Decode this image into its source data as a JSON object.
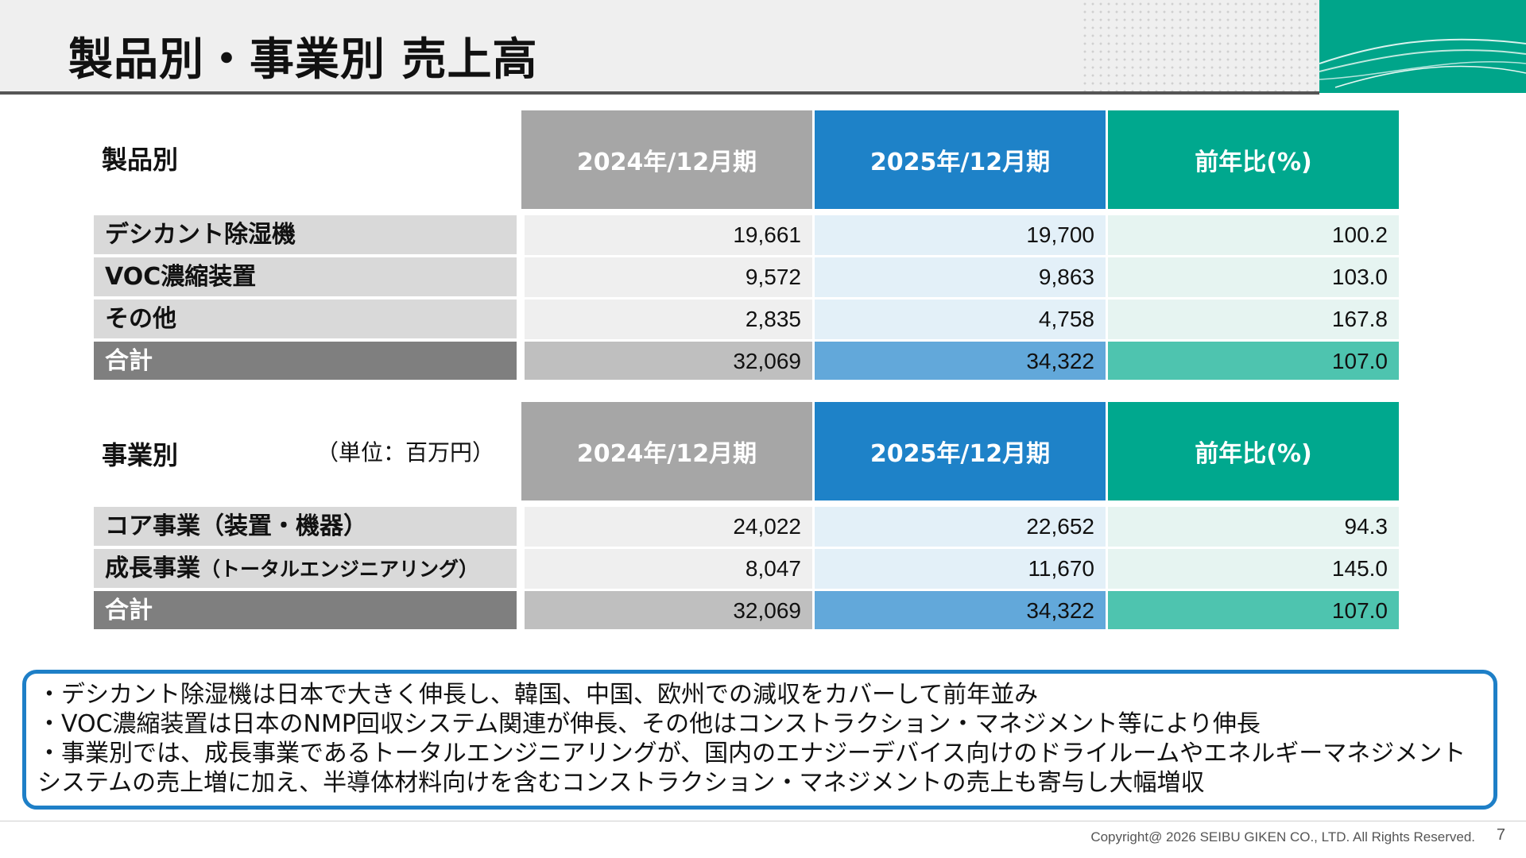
{
  "title": "製品別・事業別 売上高",
  "columns": [
    "2024年/12月期",
    "2025年/12月期",
    "前年比(%)"
  ],
  "product": {
    "heading": "製品別",
    "rows": [
      {
        "label": "デシカント除湿機",
        "v2024": "19,661",
        "v2025": "19,700",
        "ratio": "100.2"
      },
      {
        "label": "VOC濃縮装置",
        "v2024": "9,572",
        "v2025": "9,863",
        "ratio": "103.0"
      },
      {
        "label": "その他",
        "v2024": "2,835",
        "v2025": "4,758",
        "ratio": "167.8"
      }
    ],
    "total": {
      "label": "合計",
      "v2024": "32,069",
      "v2025": "34,322",
      "ratio": "107.0"
    }
  },
  "business": {
    "heading": "事業別",
    "unit": "（単位：百万円）",
    "rows": [
      {
        "label": "コア事業（装置・機器）",
        "v2024": "24,022",
        "v2025": "22,652",
        "ratio": "94.3"
      },
      {
        "label": "成長事業",
        "label_sub": "（トータルエンジニアリング）",
        "v2024": "8,047",
        "v2025": "11,670",
        "ratio": "145.0"
      }
    ],
    "total": {
      "label": "合計",
      "v2024": "32,069",
      "v2025": "34,322",
      "ratio": "107.0"
    }
  },
  "notes": [
    "・デシカント除湿機は日本で大きく伸長し、韓国、中国、欧州での減収をカバーして前年並み",
    "・VOC濃縮装置は日本のNMP回収システム関連が伸長、その他はコンストラクション・マネジメント等により伸長",
    "・事業別では、成長事業であるトータルエンジニアリングが、国内のエナジーデバイス向けのドライルームやエネルギーマネジメントシステムの売上増に加え、半導体材料向けを含むコンストラクション・マネジメントの売上も寄与し大幅増収"
  ],
  "footer": {
    "copyright": "Copyright@ 2026 SEIBU GIKEN CO., LTD. All Rights  Reserved.",
    "page": "7"
  },
  "colors": {
    "col2024": "#a6a6a6",
    "col2025": "#1e82c8",
    "colRatio": "#00a88e",
    "frame": "#1e7fc7"
  }
}
